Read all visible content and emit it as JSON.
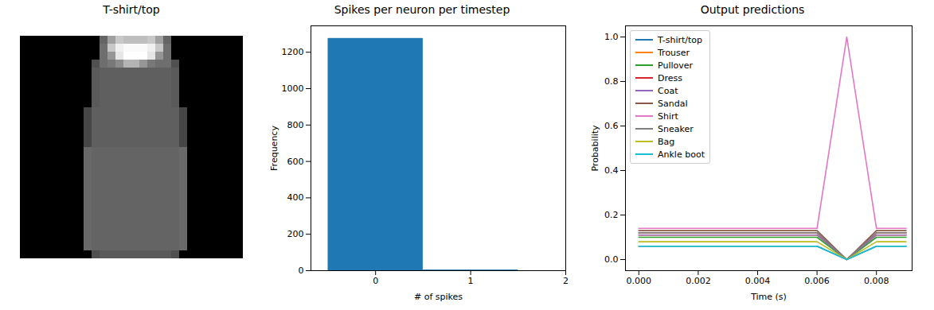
{
  "chart_data": [
    {
      "type": "image",
      "title": "T-shirt/top",
      "tick_labels": false,
      "clim": [
        0,
        255
      ],
      "pixels": [
        [
          0,
          0,
          0,
          0,
          0,
          0,
          0,
          0,
          0,
          0,
          100,
          160,
          200,
          190,
          190,
          190,
          200,
          160,
          100,
          0,
          0,
          0,
          0,
          0,
          0,
          0,
          0,
          0
        ],
        [
          0,
          0,
          0,
          0,
          0,
          0,
          0,
          0,
          0,
          0,
          110,
          200,
          240,
          250,
          250,
          250,
          240,
          200,
          110,
          0,
          0,
          0,
          0,
          0,
          0,
          0,
          0,
          0
        ],
        [
          0,
          0,
          0,
          0,
          0,
          0,
          0,
          0,
          0,
          0,
          110,
          150,
          230,
          255,
          255,
          255,
          230,
          150,
          110,
          0,
          0,
          0,
          0,
          0,
          0,
          0,
          0,
          0
        ],
        [
          0,
          0,
          0,
          0,
          0,
          0,
          0,
          0,
          0,
          80,
          110,
          120,
          140,
          180,
          180,
          150,
          120,
          110,
          110,
          80,
          0,
          0,
          0,
          0,
          0,
          0,
          0,
          0
        ],
        [
          0,
          0,
          0,
          0,
          0,
          0,
          0,
          0,
          0,
          90,
          95,
          95,
          95,
          95,
          95,
          95,
          95,
          95,
          95,
          90,
          0,
          0,
          0,
          0,
          0,
          0,
          0,
          0
        ],
        [
          0,
          0,
          0,
          0,
          0,
          0,
          0,
          0,
          0,
          90,
          95,
          95,
          95,
          95,
          95,
          95,
          95,
          95,
          95,
          90,
          0,
          0,
          0,
          0,
          0,
          0,
          0,
          0
        ],
        [
          0,
          0,
          0,
          0,
          0,
          0,
          0,
          0,
          0,
          90,
          95,
          95,
          95,
          95,
          95,
          95,
          95,
          95,
          95,
          90,
          0,
          0,
          0,
          0,
          0,
          0,
          0,
          0
        ],
        [
          0,
          0,
          0,
          0,
          0,
          0,
          0,
          0,
          0,
          90,
          95,
          95,
          95,
          95,
          95,
          95,
          95,
          95,
          95,
          90,
          0,
          0,
          0,
          0,
          0,
          0,
          0,
          0
        ],
        [
          0,
          0,
          0,
          0,
          0,
          0,
          0,
          0,
          0,
          90,
          95,
          95,
          95,
          95,
          95,
          95,
          95,
          95,
          95,
          90,
          0,
          0,
          0,
          0,
          0,
          0,
          0,
          0
        ],
        [
          0,
          0,
          0,
          0,
          0,
          0,
          0,
          0,
          70,
          95,
          95,
          95,
          95,
          95,
          95,
          95,
          95,
          95,
          95,
          95,
          70,
          0,
          0,
          0,
          0,
          0,
          0,
          0
        ],
        [
          0,
          0,
          0,
          0,
          0,
          0,
          0,
          0,
          70,
          95,
          95,
          95,
          95,
          95,
          95,
          95,
          95,
          95,
          95,
          95,
          70,
          0,
          0,
          0,
          0,
          0,
          0,
          0
        ],
        [
          0,
          0,
          0,
          0,
          0,
          0,
          0,
          0,
          70,
          95,
          95,
          95,
          95,
          95,
          95,
          95,
          95,
          95,
          95,
          95,
          70,
          0,
          0,
          0,
          0,
          0,
          0,
          0
        ],
        [
          0,
          0,
          0,
          0,
          0,
          0,
          0,
          0,
          70,
          95,
          95,
          95,
          95,
          95,
          95,
          95,
          95,
          95,
          95,
          95,
          70,
          0,
          0,
          0,
          0,
          0,
          0,
          0
        ],
        [
          0,
          0,
          0,
          0,
          0,
          0,
          0,
          0,
          70,
          95,
          95,
          95,
          95,
          95,
          95,
          95,
          95,
          95,
          95,
          95,
          70,
          0,
          0,
          0,
          0,
          0,
          0,
          0
        ],
        [
          0,
          0,
          0,
          0,
          0,
          0,
          0,
          0,
          105,
          100,
          100,
          100,
          100,
          100,
          100,
          100,
          100,
          100,
          100,
          100,
          105,
          0,
          0,
          0,
          0,
          0,
          0,
          0
        ],
        [
          0,
          0,
          0,
          0,
          0,
          0,
          0,
          0,
          105,
          100,
          100,
          100,
          100,
          100,
          100,
          100,
          100,
          100,
          100,
          100,
          105,
          0,
          0,
          0,
          0,
          0,
          0,
          0
        ],
        [
          0,
          0,
          0,
          0,
          0,
          0,
          0,
          0,
          105,
          100,
          100,
          100,
          100,
          100,
          100,
          100,
          100,
          100,
          100,
          100,
          105,
          0,
          0,
          0,
          0,
          0,
          0,
          0
        ],
        [
          0,
          0,
          0,
          0,
          0,
          0,
          0,
          0,
          105,
          100,
          100,
          100,
          100,
          100,
          100,
          100,
          100,
          100,
          100,
          100,
          105,
          0,
          0,
          0,
          0,
          0,
          0,
          0
        ],
        [
          0,
          0,
          0,
          0,
          0,
          0,
          0,
          0,
          105,
          100,
          100,
          100,
          100,
          100,
          100,
          100,
          100,
          100,
          100,
          100,
          105,
          0,
          0,
          0,
          0,
          0,
          0,
          0
        ],
        [
          0,
          0,
          0,
          0,
          0,
          0,
          0,
          0,
          105,
          100,
          100,
          100,
          100,
          100,
          100,
          100,
          100,
          100,
          100,
          100,
          105,
          0,
          0,
          0,
          0,
          0,
          0,
          0
        ],
        [
          0,
          0,
          0,
          0,
          0,
          0,
          0,
          0,
          105,
          100,
          100,
          100,
          100,
          100,
          100,
          100,
          100,
          100,
          100,
          100,
          105,
          0,
          0,
          0,
          0,
          0,
          0,
          0
        ],
        [
          0,
          0,
          0,
          0,
          0,
          0,
          0,
          0,
          105,
          100,
          100,
          100,
          100,
          100,
          100,
          100,
          100,
          100,
          100,
          100,
          105,
          0,
          0,
          0,
          0,
          0,
          0,
          0
        ],
        [
          0,
          0,
          0,
          0,
          0,
          0,
          0,
          0,
          105,
          100,
          100,
          100,
          100,
          100,
          100,
          100,
          100,
          100,
          100,
          100,
          105,
          0,
          0,
          0,
          0,
          0,
          0,
          0
        ],
        [
          0,
          0,
          0,
          0,
          0,
          0,
          0,
          0,
          105,
          100,
          100,
          100,
          100,
          100,
          100,
          100,
          100,
          100,
          100,
          100,
          105,
          0,
          0,
          0,
          0,
          0,
          0,
          0
        ],
        [
          0,
          0,
          0,
          0,
          0,
          0,
          0,
          0,
          105,
          100,
          100,
          100,
          100,
          100,
          100,
          100,
          100,
          100,
          100,
          100,
          105,
          0,
          0,
          0,
          0,
          0,
          0,
          0
        ],
        [
          0,
          0,
          0,
          0,
          0,
          0,
          0,
          0,
          105,
          100,
          100,
          100,
          100,
          100,
          100,
          100,
          100,
          100,
          100,
          100,
          105,
          0,
          0,
          0,
          0,
          0,
          0,
          0
        ],
        [
          0,
          0,
          0,
          0,
          0,
          0,
          0,
          0,
          105,
          100,
          100,
          100,
          100,
          100,
          100,
          100,
          100,
          100,
          100,
          100,
          105,
          0,
          0,
          0,
          0,
          0,
          0,
          0
        ],
        [
          0,
          0,
          0,
          0,
          0,
          0,
          0,
          0,
          0,
          80,
          90,
          90,
          90,
          90,
          90,
          90,
          90,
          90,
          90,
          80,
          0,
          0,
          0,
          0,
          0,
          0,
          0,
          0
        ]
      ]
    },
    {
      "type": "histogram",
      "title": "Spikes per neuron per timestep",
      "x_label": "# of spikes",
      "y_label": "Frequency",
      "bins": [
        -0.5,
        0.5,
        1.5
      ],
      "values": [
        1276,
        4
      ],
      "color": "#1f77b4",
      "xlim": [
        -0.68,
        2.0
      ],
      "xticks": [
        0,
        1,
        2
      ],
      "ylim": [
        0,
        1345
      ],
      "yticks": [
        0,
        200,
        400,
        600,
        800,
        1000,
        1200
      ]
    },
    {
      "type": "line",
      "title": "Output predictions",
      "x_label": "Time (s)",
      "y_label": "Probability",
      "x": [
        0,
        0.001,
        0.002,
        0.003,
        0.004,
        0.005,
        0.006,
        0.007,
        0.008,
        0.009
      ],
      "xlim": [
        -0.00045,
        0.0092
      ],
      "xticks": [
        {
          "value": 0,
          "label": "0.000"
        },
        {
          "value": 0.002,
          "label": "0.002"
        },
        {
          "value": 0.004,
          "label": "0.004"
        },
        {
          "value": 0.006,
          "label": "0.006"
        },
        {
          "value": 0.008,
          "label": "0.008"
        }
      ],
      "ylim": [
        -0.05,
        1.05
      ],
      "yticks": [
        {
          "value": 0,
          "label": "0.0"
        },
        {
          "value": 0.2,
          "label": "0.2"
        },
        {
          "value": 0.4,
          "label": "0.4"
        },
        {
          "value": 0.6,
          "label": "0.6"
        },
        {
          "value": 0.8,
          "label": "0.8"
        },
        {
          "value": 1,
          "label": "1.0"
        }
      ],
      "legend": "upper left",
      "series": [
        {
          "name": "T-shirt/top",
          "color": "#1f77b4",
          "values": [
            0.06,
            0.06,
            0.06,
            0.06,
            0.06,
            0.06,
            0.06,
            0,
            0.06,
            0.06
          ]
        },
        {
          "name": "Trouser",
          "color": "#ff7f0e",
          "values": [
            0.11,
            0.11,
            0.11,
            0.11,
            0.11,
            0.11,
            0.11,
            0,
            0.11,
            0.11
          ]
        },
        {
          "name": "Pullover",
          "color": "#2ca02c",
          "values": [
            0.1,
            0.1,
            0.1,
            0.1,
            0.1,
            0.1,
            0.1,
            0,
            0.1,
            0.1
          ]
        },
        {
          "name": "Dress",
          "color": "#d62728",
          "values": [
            0.12,
            0.12,
            0.12,
            0.12,
            0.12,
            0.12,
            0.12,
            0,
            0.12,
            0.12
          ]
        },
        {
          "name": "Coat",
          "color": "#9467bd",
          "values": [
            0.11,
            0.11,
            0.11,
            0.11,
            0.11,
            0.11,
            0.11,
            0,
            0.11,
            0.11
          ]
        },
        {
          "name": "Sandal",
          "color": "#8c564b",
          "values": [
            0.13,
            0.13,
            0.13,
            0.13,
            0.13,
            0.13,
            0.13,
            0,
            0.13,
            0.13
          ]
        },
        {
          "name": "Shirt",
          "color": "#e377c2",
          "values": [
            0.14,
            0.14,
            0.14,
            0.14,
            0.14,
            0.14,
            0.14,
            1,
            0.14,
            0.14
          ]
        },
        {
          "name": "Sneaker",
          "color": "#7f7f7f",
          "values": [
            0.12,
            0.12,
            0.12,
            0.12,
            0.12,
            0.12,
            0.12,
            0,
            0.12,
            0.12
          ]
        },
        {
          "name": "Bag",
          "color": "#bcbd22",
          "values": [
            0.08,
            0.08,
            0.08,
            0.08,
            0.08,
            0.08,
            0.08,
            0,
            0.08,
            0.08
          ]
        },
        {
          "name": "Ankle boot",
          "color": "#17becf",
          "values": [
            0.06,
            0.06,
            0.06,
            0.06,
            0.06,
            0.06,
            0.06,
            0,
            0.06,
            0.06
          ]
        }
      ]
    }
  ]
}
